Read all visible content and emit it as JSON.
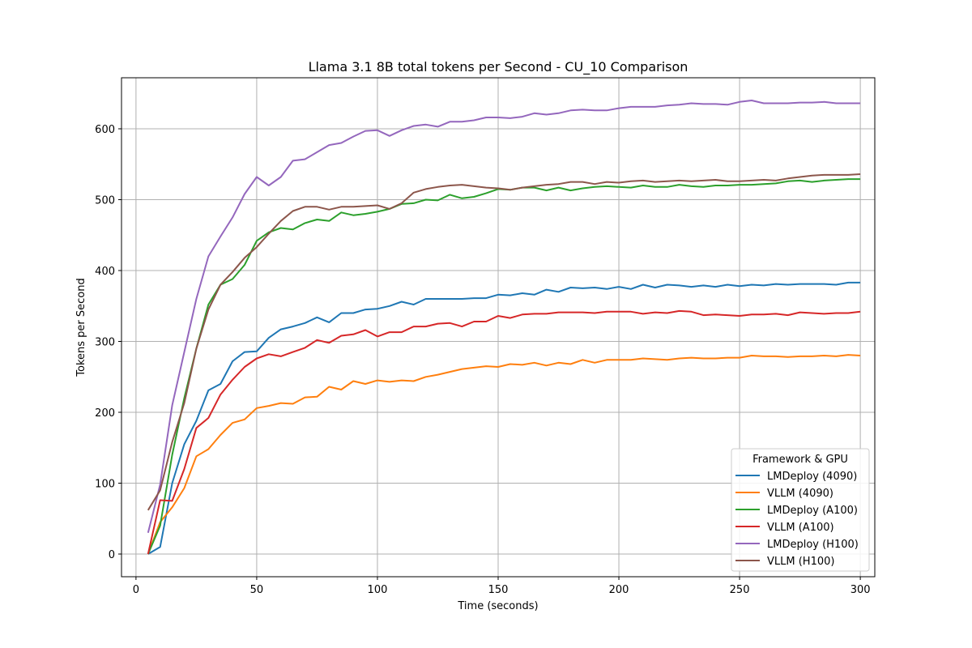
{
  "chart_data": {
    "type": "line",
    "title": "Llama 3.1 8B total tokens per Second - CU_10 Comparison",
    "xlabel": "Time (seconds)",
    "ylabel": "Tokens per Second",
    "xlim": [
      -6,
      306
    ],
    "ylim": [
      -32,
      672
    ],
    "xticks": [
      0,
      50,
      100,
      150,
      200,
      250,
      300
    ],
    "yticks": [
      0,
      100,
      200,
      300,
      400,
      500,
      600
    ],
    "grid": true,
    "legend": {
      "title": "Framework & GPU",
      "placement": "lower-right"
    },
    "x": [
      5,
      10,
      15,
      20,
      25,
      30,
      35,
      40,
      45,
      50,
      55,
      60,
      65,
      70,
      75,
      80,
      85,
      90,
      95,
      100,
      105,
      110,
      115,
      120,
      125,
      130,
      135,
      140,
      145,
      150,
      155,
      160,
      165,
      170,
      175,
      180,
      185,
      190,
      195,
      200,
      205,
      210,
      215,
      220,
      225,
      230,
      235,
      240,
      245,
      250,
      255,
      260,
      265,
      270,
      275,
      280,
      285,
      290,
      295,
      300
    ],
    "series": [
      {
        "name": "LMDeploy (4090)",
        "color": "#1f77b4",
        "values": [
          0,
          10,
          100,
          155,
          188,
          231,
          240,
          272,
          285,
          286,
          305,
          317,
          321,
          326,
          334,
          327,
          340,
          340,
          345,
          346,
          350,
          356,
          352,
          360,
          360,
          360,
          360,
          361,
          361,
          366,
          365,
          368,
          366,
          373,
          370,
          376,
          375,
          376,
          374,
          377,
          374,
          380,
          376,
          380,
          379,
          377,
          379,
          377,
          380,
          378,
          380,
          379,
          381,
          380,
          381,
          381,
          381,
          380,
          383,
          383
        ]
      },
      {
        "name": "VLLM (4090)",
        "color": "#ff7f0e",
        "values": [
          0,
          45,
          66,
          93,
          138,
          148,
          168,
          185,
          190,
          206,
          209,
          213,
          212,
          221,
          222,
          236,
          232,
          244,
          240,
          245,
          243,
          245,
          244,
          250,
          253,
          257,
          261,
          263,
          265,
          264,
          268,
          267,
          270,
          266,
          270,
          268,
          274,
          270,
          274,
          274,
          274,
          276,
          275,
          274,
          276,
          277,
          276,
          276,
          277,
          277,
          280,
          279,
          279,
          278,
          279,
          279,
          280,
          279,
          281,
          280
        ]
      },
      {
        "name": "LMDeploy (A100)",
        "color": "#2ca02c",
        "values": [
          0,
          40,
          140,
          220,
          290,
          352,
          380,
          388,
          408,
          442,
          454,
          460,
          458,
          467,
          472,
          470,
          482,
          478,
          480,
          483,
          487,
          494,
          495,
          500,
          499,
          507,
          502,
          504,
          509,
          515,
          514,
          517,
          517,
          513,
          517,
          513,
          516,
          518,
          519,
          518,
          517,
          520,
          518,
          518,
          521,
          519,
          518,
          520,
          520,
          521,
          521,
          522,
          523,
          526,
          527,
          525,
          527,
          528,
          529,
          529
        ]
      },
      {
        "name": "VLLM (A100)",
        "color": "#d62728",
        "values": [
          0,
          76,
          75,
          120,
          178,
          192,
          225,
          246,
          264,
          276,
          282,
          279,
          285,
          291,
          302,
          298,
          308,
          310,
          316,
          307,
          313,
          313,
          321,
          321,
          325,
          326,
          321,
          328,
          328,
          336,
          333,
          338,
          339,
          339,
          341,
          341,
          341,
          340,
          342,
          342,
          342,
          339,
          341,
          340,
          343,
          342,
          337,
          338,
          337,
          336,
          338,
          338,
          339,
          337,
          341,
          340,
          339,
          340,
          340,
          342
        ]
      },
      {
        "name": "LMDeploy (H100)",
        "color": "#9467bd",
        "values": [
          30,
          98,
          210,
          285,
          360,
          420,
          448,
          475,
          508,
          532,
          520,
          532,
          555,
          557,
          567,
          577,
          580,
          589,
          597,
          598,
          590,
          598,
          604,
          606,
          603,
          610,
          610,
          612,
          616,
          616,
          615,
          617,
          622,
          620,
          622,
          626,
          627,
          626,
          626,
          629,
          631,
          631,
          631,
          633,
          634,
          636,
          635,
          635,
          634,
          638,
          640,
          636,
          636,
          636,
          637,
          637,
          638,
          636,
          636,
          636
        ]
      },
      {
        "name": "VLLM (H100)",
        "color": "#8c564b",
        "values": [
          62,
          90,
          158,
          213,
          290,
          345,
          380,
          398,
          418,
          433,
          452,
          470,
          484,
          490,
          490,
          486,
          490,
          490,
          491,
          492,
          487,
          495,
          510,
          515,
          518,
          520,
          521,
          519,
          517,
          516,
          514,
          517,
          519,
          521,
          522,
          525,
          525,
          522,
          525,
          524,
          526,
          527,
          525,
          526,
          527,
          526,
          527,
          528,
          526,
          526,
          527,
          528,
          527,
          530,
          532,
          534,
          535,
          535,
          535,
          536
        ]
      }
    ]
  }
}
